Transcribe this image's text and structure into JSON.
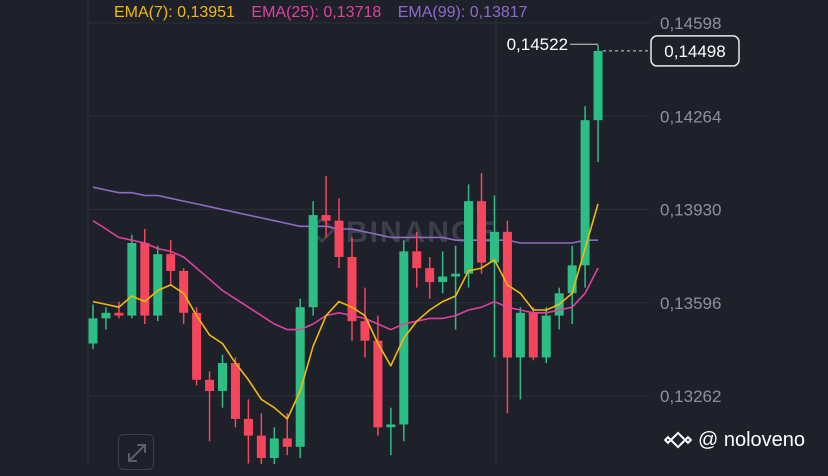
{
  "legend": {
    "ema7": "EMA(7): 0,13951",
    "ema25": "EMA(25): 0,13718",
    "ema99": "EMA(99): 0,13817"
  },
  "colors": {
    "background": "#1e2129",
    "grid": "#2b2f39",
    "up": "#2ebd85",
    "down": "#f6465d",
    "ema7": "#f0b90b",
    "ema25": "#e040a0",
    "ema99": "#8e6bc9",
    "axis_text": "#8c919c",
    "watermark_logo": "#3b3f49"
  },
  "watermark": {
    "brand": "BINANCE",
    "handle": "@ noloveno",
    "icon": "binance-diamond-icon"
  },
  "chart_data": {
    "type": "candlestick",
    "ylim": [
      0.1308,
      0.1468
    ],
    "yticks": [
      {
        "value": 0.14598,
        "label": "0,14598"
      },
      {
        "value": 0.14264,
        "label": "0,14264"
      },
      {
        "value": 0.1393,
        "label": "0,13930"
      },
      {
        "value": 0.13596,
        "label": "0,13596"
      },
      {
        "value": 0.13262,
        "label": "0,13262"
      }
    ],
    "last_price": {
      "value": 0.14498,
      "label": "0,14498"
    },
    "high_marker": {
      "value": 0.14522,
      "label": "0,14522"
    },
    "candles": [
      {
        "o": 0.1345,
        "h": 0.1359,
        "l": 0.1343,
        "c": 0.1354
      },
      {
        "o": 0.1354,
        "h": 0.1358,
        "l": 0.135,
        "c": 0.1356
      },
      {
        "o": 0.1356,
        "h": 0.136,
        "l": 0.1354,
        "c": 0.1355
      },
      {
        "o": 0.1355,
        "h": 0.1384,
        "l": 0.1354,
        "c": 0.1381
      },
      {
        "o": 0.1381,
        "h": 0.1386,
        "l": 0.1352,
        "c": 0.1355
      },
      {
        "o": 0.1355,
        "h": 0.138,
        "l": 0.1353,
        "c": 0.1377
      },
      {
        "o": 0.1377,
        "h": 0.1382,
        "l": 0.1366,
        "c": 0.1371
      },
      {
        "o": 0.1371,
        "h": 0.1372,
        "l": 0.1352,
        "c": 0.1356
      },
      {
        "o": 0.1356,
        "h": 0.1358,
        "l": 0.133,
        "c": 0.1332
      },
      {
        "o": 0.1332,
        "h": 0.1335,
        "l": 0.131,
        "c": 0.1328
      },
      {
        "o": 0.1328,
        "h": 0.1341,
        "l": 0.1322,
        "c": 0.1338
      },
      {
        "o": 0.1338,
        "h": 0.134,
        "l": 0.1315,
        "c": 0.1318
      },
      {
        "o": 0.1318,
        "h": 0.1325,
        "l": 0.1302,
        "c": 0.1312
      },
      {
        "o": 0.1312,
        "h": 0.132,
        "l": 0.13,
        "c": 0.1304
      },
      {
        "o": 0.1304,
        "h": 0.1315,
        "l": 0.13,
        "c": 0.1311
      },
      {
        "o": 0.1311,
        "h": 0.132,
        "l": 0.1305,
        "c": 0.1308
      },
      {
        "o": 0.1308,
        "h": 0.1361,
        "l": 0.1304,
        "c": 0.1358
      },
      {
        "o": 0.1358,
        "h": 0.1396,
        "l": 0.1355,
        "c": 0.1391
      },
      {
        "o": 0.1391,
        "h": 0.1405,
        "l": 0.1383,
        "c": 0.1389
      },
      {
        "o": 0.1389,
        "h": 0.1397,
        "l": 0.1372,
        "c": 0.1376
      },
      {
        "o": 0.1376,
        "h": 0.1383,
        "l": 0.1346,
        "c": 0.1353
      },
      {
        "o": 0.1353,
        "h": 0.1365,
        "l": 0.134,
        "c": 0.1346
      },
      {
        "o": 0.1346,
        "h": 0.1355,
        "l": 0.1312,
        "c": 0.1315
      },
      {
        "o": 0.1315,
        "h": 0.1322,
        "l": 0.1305,
        "c": 0.1316
      },
      {
        "o": 0.1316,
        "h": 0.1382,
        "l": 0.131,
        "c": 0.1378
      },
      {
        "o": 0.1378,
        "h": 0.1385,
        "l": 0.1365,
        "c": 0.1372
      },
      {
        "o": 0.1372,
        "h": 0.1376,
        "l": 0.1361,
        "c": 0.1367
      },
      {
        "o": 0.1367,
        "h": 0.1378,
        "l": 0.1363,
        "c": 0.1369
      },
      {
        "o": 0.1369,
        "h": 0.138,
        "l": 0.135,
        "c": 0.137
      },
      {
        "o": 0.137,
        "h": 0.1402,
        "l": 0.1365,
        "c": 0.1396
      },
      {
        "o": 0.1396,
        "h": 0.1406,
        "l": 0.137,
        "c": 0.1374
      },
      {
        "o": 0.1374,
        "h": 0.1398,
        "l": 0.134,
        "c": 0.1385
      },
      {
        "o": 0.1385,
        "h": 0.1389,
        "l": 0.132,
        "c": 0.134
      },
      {
        "o": 0.134,
        "h": 0.1358,
        "l": 0.1325,
        "c": 0.1356
      },
      {
        "o": 0.1356,
        "h": 0.1358,
        "l": 0.1339,
        "c": 0.134
      },
      {
        "o": 0.134,
        "h": 0.1358,
        "l": 0.1338,
        "c": 0.1355
      },
      {
        "o": 0.1355,
        "h": 0.1365,
        "l": 0.135,
        "c": 0.1363
      },
      {
        "o": 0.1363,
        "h": 0.138,
        "l": 0.1352,
        "c": 0.1373
      },
      {
        "o": 0.1373,
        "h": 0.143,
        "l": 0.1365,
        "c": 0.1425
      },
      {
        "o": 0.1425,
        "h": 0.1452,
        "l": 0.141,
        "c": 0.14498
      }
    ],
    "ema7": [
      0.136,
      0.1359,
      0.1358,
      0.1362,
      0.136,
      0.1364,
      0.1366,
      0.1363,
      0.1355,
      0.1348,
      0.1345,
      0.1338,
      0.1332,
      0.1325,
      0.1322,
      0.1318,
      0.1328,
      0.1344,
      0.1355,
      0.136,
      0.1358,
      0.1355,
      0.1345,
      0.1337,
      0.1347,
      0.1353,
      0.1357,
      0.136,
      0.1362,
      0.1371,
      0.1372,
      0.1375,
      0.1366,
      0.1363,
      0.1357,
      0.1357,
      0.1359,
      0.1363,
      0.1379,
      0.1395
    ],
    "ema25": [
      0.1389,
      0.1386,
      0.1383,
      0.1382,
      0.1381,
      0.1379,
      0.1378,
      0.1376,
      0.1372,
      0.1368,
      0.1364,
      0.1361,
      0.1358,
      0.1355,
      0.1352,
      0.135,
      0.135,
      0.1352,
      0.1355,
      0.1356,
      0.1355,
      0.1354,
      0.1352,
      0.135,
      0.1352,
      0.1353,
      0.1354,
      0.1354,
      0.1355,
      0.1357,
      0.1358,
      0.136,
      0.1358,
      0.1357,
      0.1356,
      0.1356,
      0.1357,
      0.1358,
      0.1363,
      0.1372
    ],
    "ema99": [
      0.1401,
      0.14,
      0.1399,
      0.1399,
      0.1398,
      0.1398,
      0.1397,
      0.1396,
      0.1395,
      0.1394,
      0.1393,
      0.1392,
      0.1391,
      0.139,
      0.1389,
      0.1388,
      0.1387,
      0.1387,
      0.1387,
      0.1386,
      0.1386,
      0.1385,
      0.1384,
      0.1383,
      0.1383,
      0.1383,
      0.1383,
      0.1383,
      0.1382,
      0.1382,
      0.1382,
      0.1382,
      0.1382,
      0.1381,
      0.1381,
      0.1381,
      0.1381,
      0.1381,
      0.1382,
      0.1382
    ]
  }
}
